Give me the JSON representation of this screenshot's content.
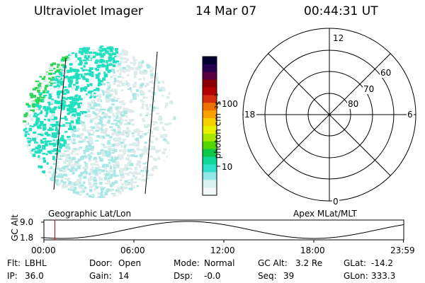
{
  "header": {
    "instrument": "Ultraviolet Imager",
    "date": "14 Mar 07",
    "time": "00:44:31 UT"
  },
  "colorbar": {
    "unit_label": "photon cm⁻²s⁻¹",
    "ticks": [
      "100",
      "10"
    ],
    "tick_values": [
      100,
      10
    ],
    "colors": [
      "#000033",
      "#2a0050",
      "#5a0040",
      "#8b0000",
      "#b30000",
      "#d43010",
      "#f07000",
      "#f8a000",
      "#f8d000",
      "#e8f000",
      "#a8e800",
      "#50d800",
      "#10c848",
      "#10d898",
      "#30e0c8",
      "#90e8e8",
      "#d8f0f0",
      "#f4f8f8"
    ]
  },
  "polar": {
    "top_label": "12",
    "bottom_label": "0",
    "left_label": "18",
    "right_label": "6",
    "lat_labels": [
      "60",
      "70",
      "80"
    ]
  },
  "timeline": {
    "ylabel": "GC Alt",
    "ytick_top": "9.0",
    "ytick_bottom": "1.8",
    "left_caption": "Geographic Lat/Lon",
    "right_caption": "Apex MLat/MLT",
    "xticks": [
      "00:00",
      "06:00",
      "12:00",
      "18:00",
      "23:59"
    ],
    "marker_time": "00:44"
  },
  "footer": {
    "row1": [
      {
        "label": "Flt:",
        "value": "LBHL"
      },
      {
        "label": "Door:",
        "value": "Open"
      },
      {
        "label": "Mode:",
        "value": "Normal"
      },
      {
        "label": "GC Alt:",
        "value": "3.2 Re"
      },
      {
        "label": "GLat:",
        "value": "-14.2"
      }
    ],
    "row2": [
      {
        "label": "IP:",
        "value": "36.0"
      },
      {
        "label": "Gain:",
        "value": "14"
      },
      {
        "label": "Dsp:",
        "value": "-0.0"
      },
      {
        "label": "Seq:",
        "value": "39"
      },
      {
        "label": "GLon:",
        "value": "333.3"
      }
    ]
  },
  "image_colors": {
    "bright": "#30d858",
    "medium": "#20e0c0",
    "dim": "#a8e8e4",
    "faint": "#dcecea"
  }
}
